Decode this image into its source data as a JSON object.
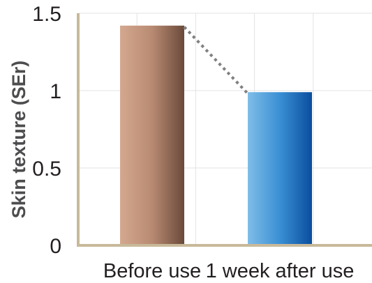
{
  "chart_data": {
    "type": "bar",
    "title": "",
    "xlabel": "",
    "ylabel": "Skin texture (SEr)",
    "categories": [
      "Before use",
      "1 week after use"
    ],
    "values": [
      1.42,
      0.99
    ],
    "ylim": [
      0,
      1.5
    ],
    "yticks": [
      0,
      0.5,
      1,
      1.5
    ],
    "ytick_labels": [
      "0",
      "0.5",
      "1",
      "1.5"
    ],
    "grid": true,
    "legend": "none",
    "bar_colors": [
      {
        "from": "#d4a88f",
        "mid": "#b88a72",
        "to": "#6a4a3a"
      },
      {
        "from": "#7fbde8",
        "mid": "#3a8fd4",
        "to": "#0a4e9e"
      }
    ],
    "axis_color": "#c8b99a",
    "grid_color": "#e3e3e3",
    "connector_color": "#808080"
  }
}
